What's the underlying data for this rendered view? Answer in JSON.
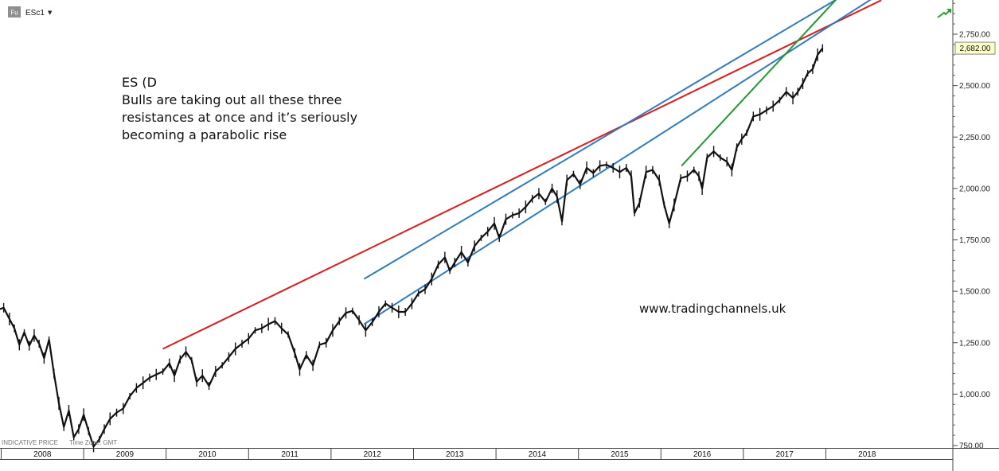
{
  "symbol": {
    "badge": "Fu",
    "name": "ESc1",
    "dropdown_glyph": "▼"
  },
  "annotation": {
    "lines": [
      "ES (D",
      "Bulls are taking out all these three",
      "resistances at once and it’s seriously",
      "becoming a parabolic rise"
    ]
  },
  "watermark": "www.tradingchannels.uk",
  "footer": {
    "indicative": "INDICATIVE PRICE",
    "timezone": "Time Zone: GMT"
  },
  "colors": {
    "price": "#111111",
    "support_resistance_line": "#dd1c1c",
    "channel_lines": "#2f7bc4",
    "parabolic_trendline": "#1f9a2f",
    "last_price_bg": "#ffffc8"
  },
  "chart_data": {
    "type": "line",
    "x_unit": "year",
    "y_axis": {
      "ticks": [
        750,
        1000,
        1250,
        1500,
        1750,
        2000,
        2250,
        2500,
        2750
      ],
      "tick_labels": [
        "750.00",
        "1,000.00",
        "1,250.00",
        "1,500.00",
        "1,750.00",
        "2,000.00",
        "2,250.00",
        "2,500.00",
        "2,750.00"
      ],
      "range": [
        750,
        2920
      ]
    },
    "x_axis": {
      "labels": [
        "2008",
        "2009",
        "2010",
        "2011",
        "2012",
        "2013",
        "2014",
        "2015",
        "2016",
        "2017",
        "2018"
      ],
      "range": [
        2007.96,
        2018.7
      ]
    },
    "last_price": {
      "value": 2682,
      "label": "2,682.00"
    },
    "series": [
      {
        "values": [
          [
            2007.96,
            1410
          ],
          [
            2008.03,
            1420
          ],
          [
            2008.1,
            1365
          ],
          [
            2008.16,
            1320
          ],
          [
            2008.22,
            1240
          ],
          [
            2008.28,
            1300
          ],
          [
            2008.34,
            1235
          ],
          [
            2008.4,
            1285
          ],
          [
            2008.46,
            1245
          ],
          [
            2008.52,
            1175
          ],
          [
            2008.58,
            1265
          ],
          [
            2008.64,
            1100
          ],
          [
            2008.7,
            955
          ],
          [
            2008.76,
            840
          ],
          [
            2008.82,
            920
          ],
          [
            2008.88,
            790
          ],
          [
            2008.94,
            830
          ],
          [
            2009.0,
            900
          ],
          [
            2009.06,
            820
          ],
          [
            2009.12,
            745
          ],
          [
            2009.19,
            780
          ],
          [
            2009.25,
            830
          ],
          [
            2009.32,
            880
          ],
          [
            2009.4,
            910
          ],
          [
            2009.48,
            930
          ],
          [
            2009.56,
            990
          ],
          [
            2009.64,
            1030
          ],
          [
            2009.72,
            1055
          ],
          [
            2009.8,
            1080
          ],
          [
            2009.88,
            1095
          ],
          [
            2009.96,
            1110
          ],
          [
            2010.04,
            1150
          ],
          [
            2010.1,
            1090
          ],
          [
            2010.17,
            1170
          ],
          [
            2010.24,
            1205
          ],
          [
            2010.31,
            1165
          ],
          [
            2010.37,
            1060
          ],
          [
            2010.44,
            1090
          ],
          [
            2010.52,
            1040
          ],
          [
            2010.6,
            1110
          ],
          [
            2010.68,
            1140
          ],
          [
            2010.76,
            1180
          ],
          [
            2010.84,
            1220
          ],
          [
            2010.92,
            1245
          ],
          [
            2011.0,
            1270
          ],
          [
            2011.08,
            1310
          ],
          [
            2011.16,
            1320
          ],
          [
            2011.24,
            1340
          ],
          [
            2011.32,
            1355
          ],
          [
            2011.4,
            1320
          ],
          [
            2011.48,
            1290
          ],
          [
            2011.56,
            1200
          ],
          [
            2011.62,
            1120
          ],
          [
            2011.7,
            1190
          ],
          [
            2011.78,
            1140
          ],
          [
            2011.86,
            1240
          ],
          [
            2011.94,
            1250
          ],
          [
            2012.02,
            1310
          ],
          [
            2012.1,
            1355
          ],
          [
            2012.18,
            1395
          ],
          [
            2012.26,
            1405
          ],
          [
            2012.34,
            1360
          ],
          [
            2012.42,
            1310
          ],
          [
            2012.5,
            1350
          ],
          [
            2012.58,
            1400
          ],
          [
            2012.66,
            1440
          ],
          [
            2012.74,
            1420
          ],
          [
            2012.82,
            1400
          ],
          [
            2012.9,
            1400
          ],
          [
            2012.98,
            1440
          ],
          [
            2013.06,
            1490
          ],
          [
            2013.14,
            1510
          ],
          [
            2013.22,
            1560
          ],
          [
            2013.3,
            1630
          ],
          [
            2013.38,
            1665
          ],
          [
            2013.44,
            1600
          ],
          [
            2013.5,
            1640
          ],
          [
            2013.58,
            1690
          ],
          [
            2013.66,
            1640
          ],
          [
            2013.74,
            1720
          ],
          [
            2013.82,
            1760
          ],
          [
            2013.9,
            1790
          ],
          [
            2013.98,
            1830
          ],
          [
            2014.04,
            1760
          ],
          [
            2014.12,
            1850
          ],
          [
            2014.2,
            1870
          ],
          [
            2014.28,
            1880
          ],
          [
            2014.36,
            1910
          ],
          [
            2014.44,
            1950
          ],
          [
            2014.52,
            1975
          ],
          [
            2014.6,
            1935
          ],
          [
            2014.68,
            2000
          ],
          [
            2014.74,
            1960
          ],
          [
            2014.8,
            1840
          ],
          [
            2014.86,
            2040
          ],
          [
            2014.94,
            2070
          ],
          [
            2015.02,
            2020
          ],
          [
            2015.1,
            2100
          ],
          [
            2015.18,
            2075
          ],
          [
            2015.26,
            2110
          ],
          [
            2015.34,
            2115
          ],
          [
            2015.42,
            2100
          ],
          [
            2015.5,
            2080
          ],
          [
            2015.58,
            2100
          ],
          [
            2015.64,
            2060
          ],
          [
            2015.68,
            1880
          ],
          [
            2015.74,
            1930
          ],
          [
            2015.82,
            2080
          ],
          [
            2015.9,
            2090
          ],
          [
            2015.98,
            2040
          ],
          [
            2016.04,
            1920
          ],
          [
            2016.1,
            1830
          ],
          [
            2016.16,
            1920
          ],
          [
            2016.24,
            2050
          ],
          [
            2016.32,
            2060
          ],
          [
            2016.4,
            2090
          ],
          [
            2016.46,
            2060
          ],
          [
            2016.5,
            2000
          ],
          [
            2016.56,
            2150
          ],
          [
            2016.64,
            2180
          ],
          [
            2016.72,
            2150
          ],
          [
            2016.8,
            2130
          ],
          [
            2016.86,
            2090
          ],
          [
            2016.92,
            2200
          ],
          [
            2016.98,
            2240
          ],
          [
            2017.04,
            2270
          ],
          [
            2017.12,
            2350
          ],
          [
            2017.2,
            2360
          ],
          [
            2017.28,
            2380
          ],
          [
            2017.36,
            2400
          ],
          [
            2017.44,
            2430
          ],
          [
            2017.52,
            2470
          ],
          [
            2017.6,
            2440
          ],
          [
            2017.66,
            2470
          ],
          [
            2017.72,
            2510
          ],
          [
            2017.78,
            2560
          ],
          [
            2017.84,
            2580
          ],
          [
            2017.9,
            2650
          ],
          [
            2017.96,
            2682
          ]
        ]
      }
    ],
    "trendlines": [
      {
        "role": "resistance",
        "color": "red",
        "from": [
          2009.96,
          1220
        ],
        "to": [
          2018.67,
          2915
        ]
      },
      {
        "role": "channel-upper",
        "color": "blue",
        "from": [
          2012.4,
          1560
        ],
        "to": [
          2018.3,
          2960
        ]
      },
      {
        "role": "channel-lower",
        "color": "blue",
        "from": [
          2012.4,
          1340
        ],
        "to": [
          2018.55,
          2920
        ]
      },
      {
        "role": "parabolic",
        "color": "green",
        "from": [
          2016.25,
          2110
        ],
        "to": [
          2018.22,
          2960
        ]
      }
    ]
  }
}
